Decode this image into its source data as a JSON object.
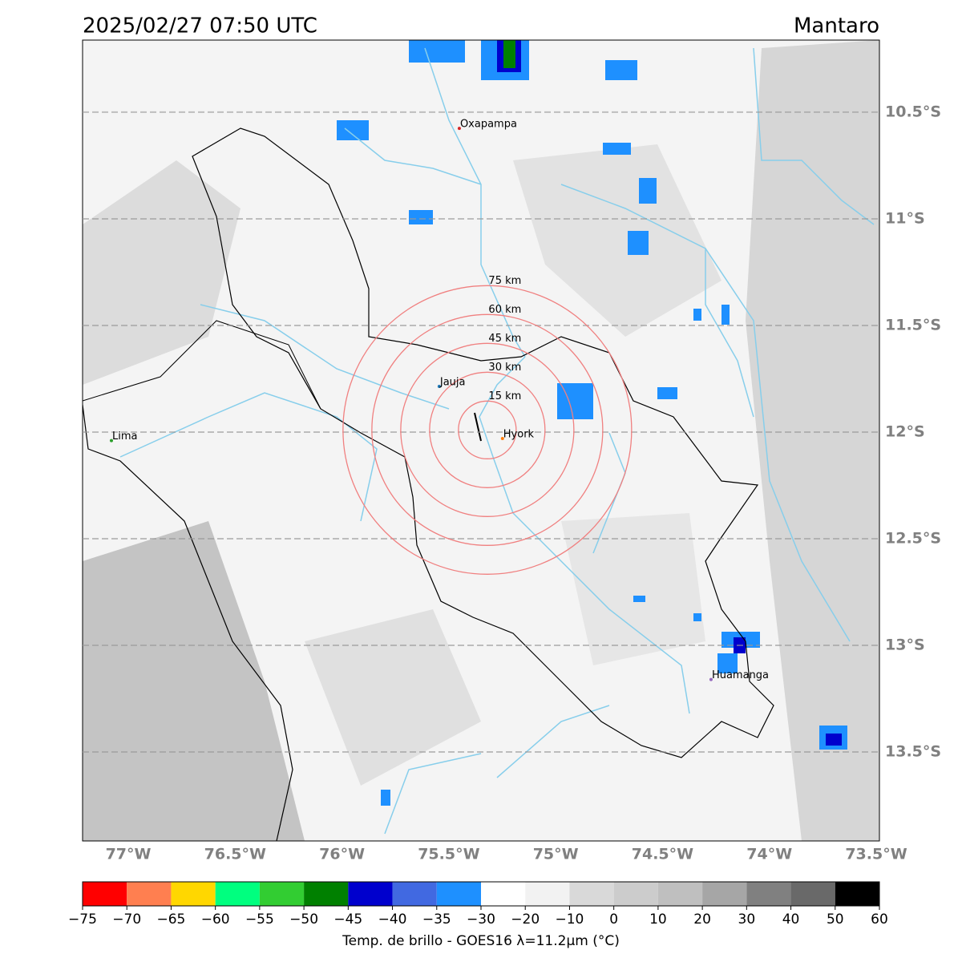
{
  "title": "2025/02/27 07:50 UTC",
  "region": "Mantaro",
  "lon_range": [
    -77.214,
    -73.485
  ],
  "lat_range": [
    -10.162,
    -13.917
  ],
  "lon_ticks": [
    {
      "value": -77,
      "label": "77°W"
    },
    {
      "value": -76.5,
      "label": "76.5°W"
    },
    {
      "value": -76,
      "label": "76°W"
    },
    {
      "value": -75.5,
      "label": "75.5°W"
    },
    {
      "value": -75,
      "label": "75°W"
    },
    {
      "value": -74.5,
      "label": "74.5°W"
    },
    {
      "value": -74,
      "label": "74°W"
    },
    {
      "value": -73.5,
      "label": "73.5°W"
    }
  ],
  "lat_ticks": [
    {
      "value": -10.5,
      "label": "10.5°S"
    },
    {
      "value": -11,
      "label": "11°S"
    },
    {
      "value": -11.5,
      "label": "11.5°S"
    },
    {
      "value": -12,
      "label": "12°S"
    },
    {
      "value": -12.5,
      "label": "12.5°S"
    },
    {
      "value": -13,
      "label": "13°S"
    },
    {
      "value": -13.5,
      "label": "13.5°S"
    }
  ],
  "cities": [
    {
      "name": "Oxapampa",
      "lon": -75.451,
      "lat": -10.576,
      "color": "#d62728"
    },
    {
      "name": "Jauja",
      "lon": -75.545,
      "lat": -11.786,
      "color": "#1f77b4"
    },
    {
      "name": "Hyork",
      "lon": -75.249,
      "lat": -12.03,
      "color": "#ff7f0e"
    },
    {
      "name": "Lima",
      "lon": -77.079,
      "lat": -12.04,
      "color": "#2ca02c"
    },
    {
      "name": "Huamanga",
      "lon": -74.273,
      "lat": -13.16,
      "color": "#9467bd"
    }
  ],
  "radar": {
    "lon": -75.32,
    "lat": -11.99
  },
  "rings": [
    {
      "radius_km": 15,
      "label": "15 km"
    },
    {
      "radius_km": 30,
      "label": "30 km"
    },
    {
      "radius_km": 45,
      "label": "45 km"
    },
    {
      "radius_km": 60,
      "label": "60 km"
    },
    {
      "radius_km": 75,
      "label": "75 km"
    }
  ],
  "colorbar": {
    "ticks": [
      {
        "value": -75,
        "label": "−75"
      },
      {
        "value": -70,
        "label": "−70"
      },
      {
        "value": -65,
        "label": "−65"
      },
      {
        "value": -60,
        "label": "−60"
      },
      {
        "value": -55,
        "label": "−55"
      },
      {
        "value": -50,
        "label": "−50"
      },
      {
        "value": -45,
        "label": "−45"
      },
      {
        "value": -40,
        "label": "−40"
      },
      {
        "value": -35,
        "label": "−35"
      },
      {
        "value": -30,
        "label": "−30"
      },
      {
        "value": -20,
        "label": "−20"
      },
      {
        "value": -10,
        "label": "−10"
      },
      0,
      10,
      20,
      30,
      40,
      50,
      60
    ],
    "colors": [
      "#ff0000",
      "#ff7f50",
      "#ffd700",
      "#00ff7f",
      "#32cd32",
      "#008000",
      "#0000cd",
      "#4169e1",
      "#1e90ff",
      "#ffffff",
      "#f2f2f2",
      "#d9d9d9",
      "#cccccc",
      "#bfbfbf",
      "#a6a6a6",
      "#808080",
      "#696969",
      "#000000"
    ],
    "label": "Temp. de brillo - GOES16 λ=11.2μm (°C)"
  }
}
